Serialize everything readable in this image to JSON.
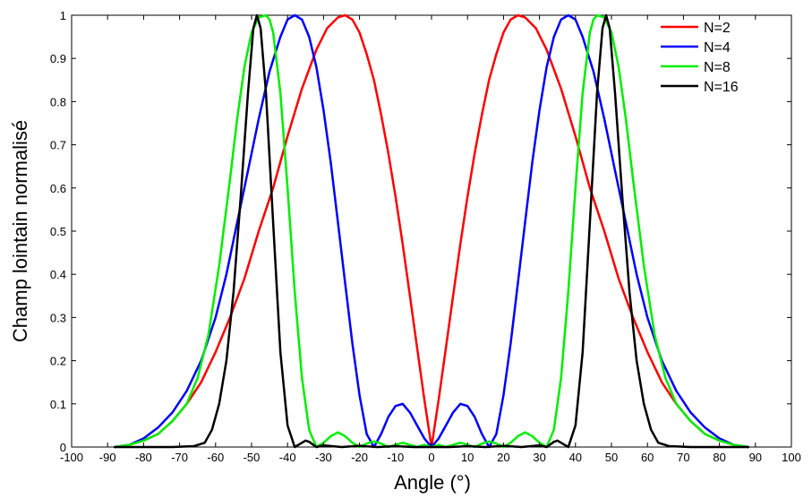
{
  "chart_data": {
    "type": "line",
    "title": "",
    "xlabel": "Angle (°)",
    "ylabel": "Champ lointain normalisé",
    "xlim": [
      -100,
      100
    ],
    "ylim": [
      0,
      1
    ],
    "xticks": [
      -100,
      -90,
      -80,
      -70,
      -60,
      -50,
      -40,
      -30,
      -20,
      -10,
      0,
      10,
      20,
      30,
      40,
      50,
      60,
      70,
      80,
      90,
      100
    ],
    "yticks": [
      0,
      0.1,
      0.2,
      0.3,
      0.4,
      0.5,
      0.6,
      0.7,
      0.8,
      0.9,
      1
    ],
    "grid": false,
    "legend_position": "top-right",
    "series": [
      {
        "name": "N=2",
        "color": "#ff0000",
        "x": [
          -88,
          -84,
          -80,
          -76,
          -72,
          -68,
          -64,
          -60,
          -56,
          -52,
          -48,
          -44,
          -40,
          -36,
          -32,
          -29,
          -26,
          -24,
          -22,
          -20,
          -18,
          -16,
          -14,
          -12,
          -10,
          -8,
          -6,
          -4,
          -2,
          0,
          2,
          4,
          6,
          8,
          10,
          12,
          14,
          16,
          18,
          20,
          22,
          24,
          26,
          29,
          32,
          36,
          40,
          44,
          48,
          52,
          56,
          60,
          64,
          68,
          72,
          76,
          80,
          84,
          88
        ],
        "y": [
          0.0,
          0.005,
          0.015,
          0.03,
          0.06,
          0.1,
          0.15,
          0.22,
          0.3,
          0.39,
          0.5,
          0.6,
          0.72,
          0.83,
          0.92,
          0.97,
          0.995,
          1.0,
          0.99,
          0.96,
          0.91,
          0.85,
          0.77,
          0.68,
          0.58,
          0.47,
          0.35,
          0.23,
          0.11,
          0.0,
          0.11,
          0.23,
          0.35,
          0.47,
          0.58,
          0.68,
          0.77,
          0.85,
          0.91,
          0.96,
          0.99,
          1.0,
          0.995,
          0.97,
          0.92,
          0.83,
          0.72,
          0.6,
          0.5,
          0.39,
          0.3,
          0.22,
          0.15,
          0.1,
          0.06,
          0.03,
          0.015,
          0.005,
          0.0
        ]
      },
      {
        "name": "N=4",
        "color": "#0000ff",
        "x": [
          -88,
          -84,
          -80,
          -76,
          -72,
          -68,
          -64,
          -60,
          -57,
          -54,
          -51,
          -48,
          -45,
          -42,
          -40,
          -38,
          -36,
          -34,
          -32,
          -30,
          -28,
          -26,
          -24,
          -22,
          -20,
          -18,
          -16,
          -14,
          -12,
          -10,
          -8,
          -6,
          -4,
          -2,
          0,
          2,
          4,
          6,
          8,
          10,
          12,
          14,
          16,
          18,
          20,
          22,
          24,
          26,
          28,
          30,
          32,
          34,
          36,
          38,
          40,
          42,
          45,
          48,
          51,
          54,
          57,
          60,
          64,
          68,
          72,
          76,
          80,
          84,
          88
        ],
        "y": [
          0.0,
          0.005,
          0.02,
          0.045,
          0.08,
          0.13,
          0.2,
          0.3,
          0.4,
          0.52,
          0.64,
          0.76,
          0.87,
          0.95,
          0.99,
          1.0,
          0.99,
          0.95,
          0.88,
          0.78,
          0.66,
          0.52,
          0.38,
          0.24,
          0.12,
          0.03,
          0.0,
          0.03,
          0.07,
          0.095,
          0.1,
          0.08,
          0.05,
          0.02,
          0.0,
          0.02,
          0.05,
          0.08,
          0.1,
          0.095,
          0.07,
          0.03,
          0.0,
          0.03,
          0.12,
          0.24,
          0.38,
          0.52,
          0.66,
          0.78,
          0.88,
          0.95,
          0.99,
          1.0,
          0.99,
          0.95,
          0.87,
          0.76,
          0.64,
          0.52,
          0.4,
          0.3,
          0.2,
          0.13,
          0.08,
          0.045,
          0.02,
          0.005,
          0.0
        ]
      },
      {
        "name": "N=8",
        "color": "#00ee00",
        "x": [
          -88,
          -84,
          -80,
          -76,
          -72,
          -68,
          -65,
          -62,
          -59,
          -56,
          -54,
          -52,
          -50,
          -48,
          -46,
          -45,
          -44,
          -42,
          -40,
          -38,
          -36,
          -34,
          -32,
          -30,
          -28,
          -26,
          -24,
          -22,
          -20,
          -18,
          -16,
          -14,
          -12,
          -10,
          -8,
          -6,
          -4,
          -2,
          0,
          2,
          4,
          6,
          8,
          10,
          12,
          14,
          16,
          18,
          20,
          22,
          24,
          26,
          28,
          30,
          32,
          34,
          36,
          38,
          40,
          42,
          44,
          45,
          46,
          48,
          50,
          52,
          54,
          56,
          59,
          62,
          65,
          68,
          72,
          76,
          80,
          84,
          88
        ],
        "y": [
          0.0,
          0.005,
          0.015,
          0.03,
          0.06,
          0.1,
          0.16,
          0.26,
          0.42,
          0.62,
          0.76,
          0.88,
          0.96,
          0.995,
          1.0,
          0.99,
          0.96,
          0.82,
          0.6,
          0.36,
          0.16,
          0.04,
          0.0,
          0.01,
          0.025,
          0.034,
          0.025,
          0.01,
          0.0,
          0.008,
          0.013,
          0.008,
          0.0,
          0.005,
          0.01,
          0.005,
          0.0,
          0.005,
          0.0,
          0.005,
          0.0,
          0.005,
          0.01,
          0.005,
          0.0,
          0.008,
          0.013,
          0.008,
          0.0,
          0.01,
          0.025,
          0.034,
          0.025,
          0.01,
          0.0,
          0.04,
          0.16,
          0.36,
          0.6,
          0.82,
          0.96,
          0.99,
          1.0,
          0.995,
          0.96,
          0.88,
          0.76,
          0.62,
          0.42,
          0.26,
          0.16,
          0.1,
          0.06,
          0.03,
          0.015,
          0.005,
          0.0
        ]
      },
      {
        "name": "N=16",
        "color": "#000000",
        "x": [
          -88,
          -80,
          -72,
          -66,
          -63,
          -61,
          -59,
          -57,
          -55,
          -53,
          -51,
          -49.5,
          -48.5,
          -47.5,
          -46,
          -44,
          -42,
          -40,
          -38,
          -36,
          -35,
          -34,
          -32,
          -30,
          -25,
          -20,
          -15,
          -10,
          -5,
          0,
          5,
          10,
          15,
          20,
          25,
          30,
          32,
          34,
          35,
          36,
          38,
          40,
          42,
          44,
          46,
          47.5,
          48.5,
          49.5,
          51,
          53,
          55,
          57,
          59,
          61,
          63,
          66,
          72,
          80,
          88
        ],
        "y": [
          0.0,
          0.0,
          0.0,
          0.002,
          0.01,
          0.04,
          0.1,
          0.2,
          0.36,
          0.58,
          0.82,
          0.97,
          1.0,
          0.97,
          0.82,
          0.52,
          0.22,
          0.05,
          0.0,
          0.01,
          0.015,
          0.012,
          0.0,
          0.004,
          0.0,
          0.003,
          0.0,
          0.002,
          0.0,
          0.0,
          0.0,
          0.002,
          0.0,
          0.003,
          0.0,
          0.004,
          0.0,
          0.012,
          0.015,
          0.01,
          0.0,
          0.05,
          0.22,
          0.52,
          0.82,
          0.97,
          1.0,
          0.97,
          0.82,
          0.58,
          0.36,
          0.2,
          0.1,
          0.04,
          0.01,
          0.002,
          0.0,
          0.0,
          0.0
        ]
      }
    ]
  }
}
